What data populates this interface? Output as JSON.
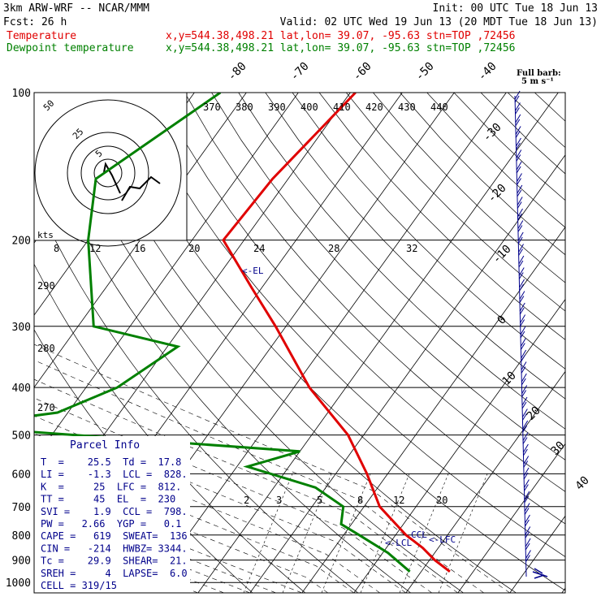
{
  "header": {
    "line1_left": "3km ARW-WRF -- NCAR/MMM",
    "line1_right": "Init: 00 UTC Tue 18 Jun 13",
    "line2_left": "Fcst:    26 h",
    "line2_right": "Valid: 02 UTC Wed 19 Jun 13 (20 MDT Tue 18 Jun 13)",
    "temp_label": "Temperature",
    "temp_info": "x,y=544.38,498.21   lat,lon= 39.07, -95.63  stn=TOP ,72456",
    "dew_label": "Dewpoint temperature",
    "dew_info": "x,y=544.38,498.21   lat,lon= 39.07, -95.63  stn=TOP ,72456"
  },
  "colors": {
    "temperature": "#e00000",
    "dewpoint": "#008000",
    "annotation": "#00008b",
    "grid": "#000000"
  },
  "barb_legend": {
    "line1": "Full barb:",
    "line2": "5 m s⁻¹"
  },
  "chart_data": {
    "type": "skew-t",
    "pressure_levels": [
      100,
      200,
      300,
      400,
      500,
      600,
      700,
      800,
      900,
      1000
    ],
    "temperature_ticks": [
      -80,
      -70,
      -60,
      -50,
      -40,
      -30,
      -20,
      -10,
      0,
      10,
      20,
      30,
      40
    ],
    "theta_labels": [
      370,
      380,
      390,
      400,
      410,
      420,
      430,
      440
    ],
    "hodograph_speed_labels": [
      8,
      12,
      16,
      20,
      24,
      28,
      32
    ],
    "hodograph_ring_labels": [
      5,
      25,
      50
    ],
    "hodograph_units": "kts",
    "mixing_ratio_labels": [
      2,
      3,
      5,
      8,
      12,
      20
    ],
    "theta_e_labels": [
      290,
      280,
      270
    ],
    "temperature_profile": [
      {
        "p": 100,
        "t": -59
      },
      {
        "p": 150,
        "t": -63
      },
      {
        "p": 200,
        "t": -64
      },
      {
        "p": 250,
        "t": -52
      },
      {
        "p": 300,
        "t": -42
      },
      {
        "p": 400,
        "t": -27
      },
      {
        "p": 500,
        "t": -13
      },
      {
        "p": 600,
        "t": -4
      },
      {
        "p": 700,
        "t": 3
      },
      {
        "p": 800,
        "t": 12
      },
      {
        "p": 850,
        "t": 17
      },
      {
        "p": 900,
        "t": 21
      },
      {
        "p": 950,
        "t": 25.5
      }
    ],
    "dewpoint_profile": [
      {
        "p": 100,
        "t": -85
      },
      {
        "p": 150,
        "t": -97
      },
      {
        "p": 200,
        "t": -90
      },
      {
        "p": 300,
        "t": -77
      },
      {
        "p": 330,
        "t": -58
      },
      {
        "p": 400,
        "t": -64
      },
      {
        "p": 450,
        "t": -72
      },
      {
        "p": 480,
        "t": -90
      },
      {
        "p": 540,
        "t": -20
      },
      {
        "p": 580,
        "t": -28
      },
      {
        "p": 640,
        "t": -12
      },
      {
        "p": 700,
        "t": -4
      },
      {
        "p": 760,
        "t": -2
      },
      {
        "p": 800,
        "t": 3
      },
      {
        "p": 870,
        "t": 11
      },
      {
        "p": 950,
        "t": 17.8
      }
    ],
    "annotations": {
      "el": "<-EL",
      "ccl": "CCL",
      "lcl": "<-LCL",
      "lfc": "<-LFC"
    },
    "parcel_info_title": "Parcel Info",
    "parcel_info": [
      "T  =    25.5  Td =  17.8",
      "LI =    -1.3  LCL =  828.",
      "K  =     25  LFC =  812.",
      "TT =     45  EL  =  230",
      "SVI =    1.9  CCL =  798.",
      "PW =   2.66  YGP =   0.1",
      "CAPE =   619  SWEAT=  136",
      "CIN =   -214  HWBZ= 3344.",
      "Tc =    29.9  SHEAR=  21.",
      "SREH =     4  LAPSE=  6.0",
      "CELL = 319/15"
    ]
  }
}
